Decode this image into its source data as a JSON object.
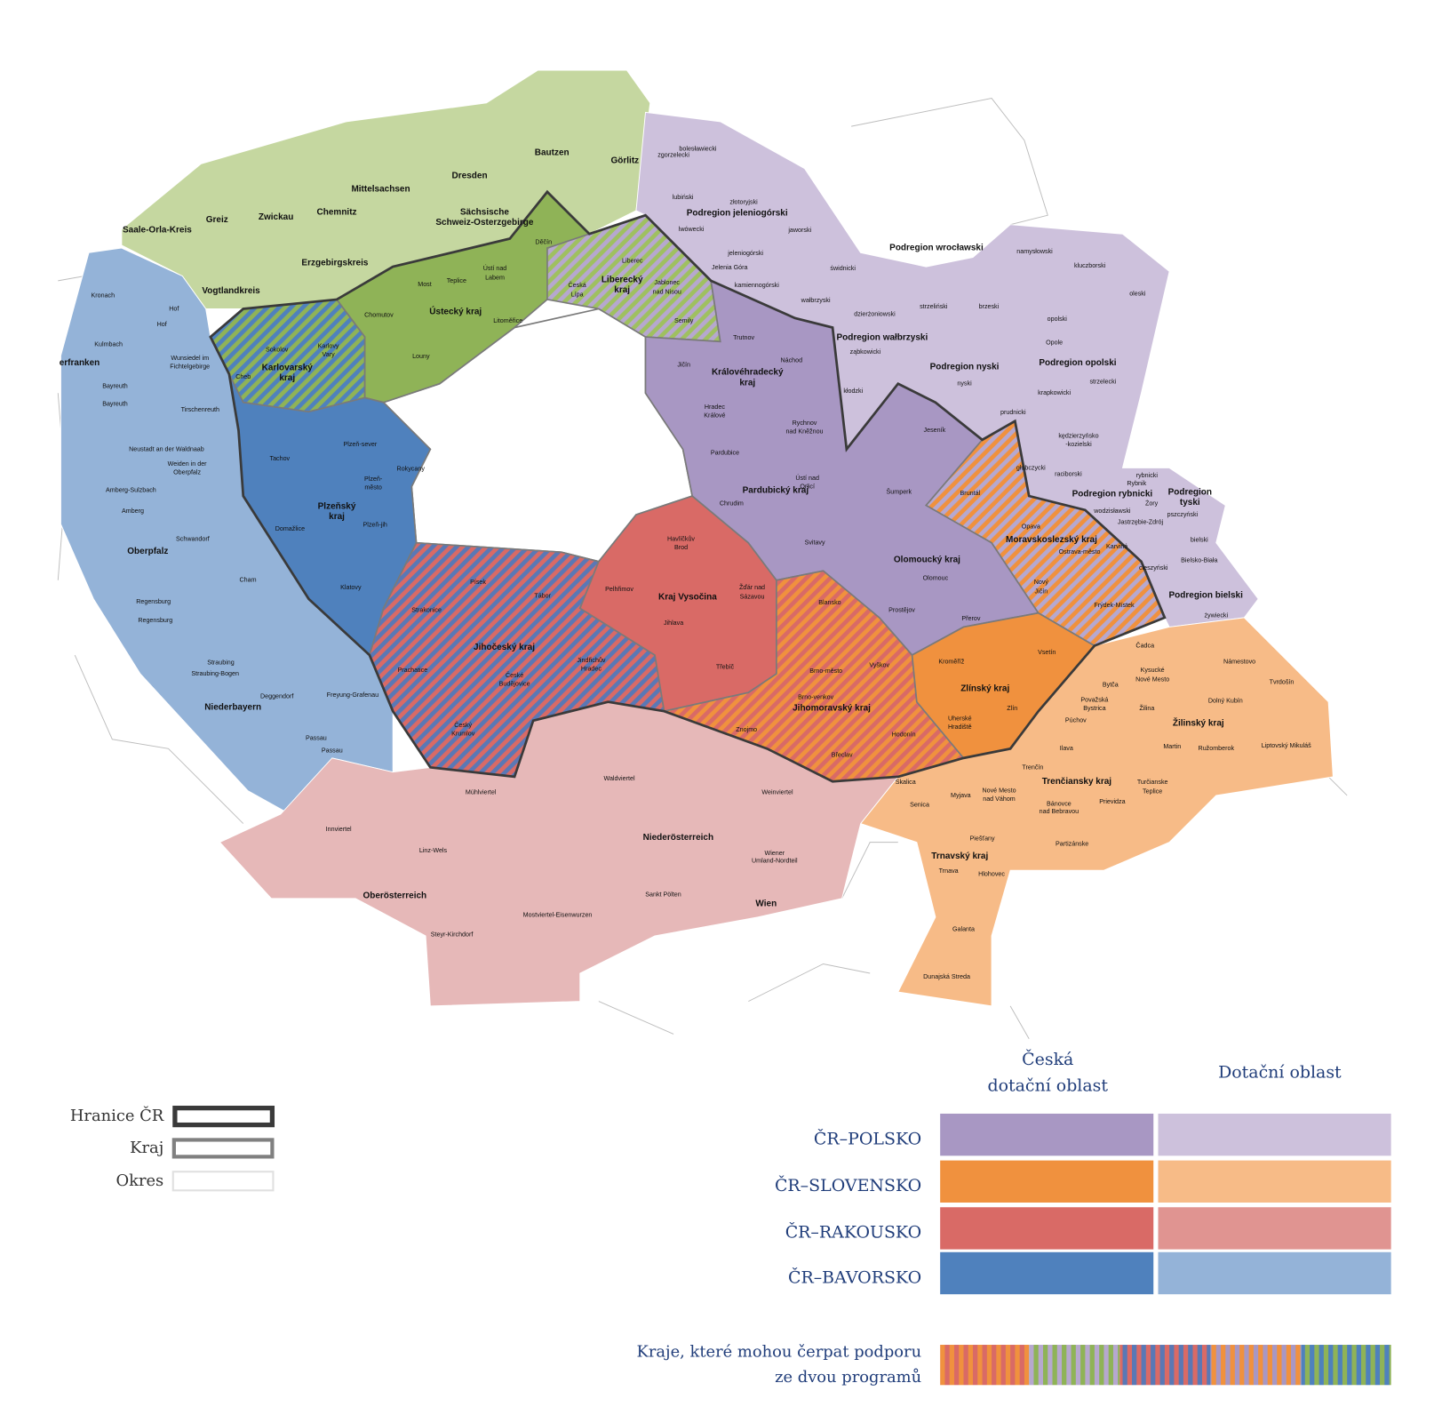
{
  "labels": {
    "saxony": [
      "Bautzen",
      "Görlitz",
      "Dresden",
      "Mittelsachsen",
      "Chemnitz",
      "Zwickau",
      "Greiz",
      "Saale-Orla-Kreis",
      "Sächsische",
      "Schweiz-Osterzgebirge",
      "Erzgebirgskreis",
      "Vogtlandkreis"
    ],
    "ustecky": [
      "Děčín",
      "Most",
      "Teplice",
      "Ústí nad",
      "Labem",
      "Ústecký kraj",
      "Chomutov",
      "Litoměřice",
      "Louny"
    ],
    "liberecky": [
      "Liberec",
      "Česká",
      "Lípa",
      "Liberecký",
      "kraj",
      "Jablonec",
      "nad Nisou",
      "Semily"
    ],
    "karlovarsky": [
      "Sokolov",
      "Karlovy",
      "Vary",
      "Karlovarský",
      "kraj",
      "Cheb"
    ],
    "bavaria": [
      "Kronach",
      "Hof",
      "Hof",
      "Kulmbach",
      "erfranken",
      "Wunsiedel im",
      "Fichtelgebirge",
      "Bayreuth",
      "Bayreuth",
      "Tirschenreuth",
      "Neustadt an der Waldnaab",
      "Weiden in der",
      "Oberpfalz",
      "Amberg-Sulzbach",
      "Amberg",
      "Schwandorf",
      "Oberpfalz",
      "Cham",
      "Regensburg",
      "Regensburg",
      "Straubing",
      "Straubing-Bogen",
      "Deggendorf",
      "Freyung-Grafenau",
      "Niederbayern",
      "Passau",
      "Passau"
    ],
    "plzensky": [
      "Tachov",
      "Plzeň-sever",
      "Rokycany",
      "Plzeň-",
      "město",
      "Plzeňský",
      "kraj",
      "Domažlice",
      "Plzeň-jih",
      "Klatovy"
    ],
    "jihocesky": [
      "Písek",
      "Tábor",
      "Strakonice",
      "Jihočeský kraj",
      "Jindřichův",
      "Hradec",
      "Prachatice",
      "České",
      "Budějovice",
      "Český",
      "Krumlov"
    ],
    "vysocina": [
      "Havlíčkův",
      "Brod",
      "Pelhřimov",
      "Kraj Vysočina",
      "Žďár nad",
      "Sázavou",
      "Jihlava",
      "Třebíč"
    ],
    "jihomoravsky": [
      "Blansko",
      "Vyškov",
      "Brno-město",
      "Brno-venkov",
      "Jihomoravský kraj",
      "Znojmo",
      "Hodonín",
      "Břeclav"
    ],
    "zlinsky": [
      "Vsetín",
      "Kroměříž",
      "Zlínský kraj",
      "Zlín",
      "Uherské",
      "Hradiště"
    ],
    "east": [
      "Trutnov",
      "Náchod",
      "Jičín",
      "Královéhradecký",
      "kraj",
      "Hradec",
      "Králové",
      "Rychnov",
      "nad Kněžnou",
      "Pardubice",
      "Ústí nad",
      "Orlicí",
      "Pardubický kraj",
      "Chrudim",
      "Svitavy",
      "Šumperk",
      "Jeseník",
      "Olomoucký kraj",
      "Olomouc",
      "Prostějov",
      "Přerov"
    ],
    "moravskoslezsky": [
      "Bruntál",
      "Opava",
      "Moravskoslezský kraj",
      "Ostrava-město",
      "Karviná",
      "Nový",
      "Jičín",
      "Frýdek-Místek"
    ],
    "poland": [
      "bolesławiecki",
      "zgorzelecki",
      "lubiński",
      "złotoryjski",
      "Podregion jeleniogórski",
      "lwówecki",
      "jaworski",
      "jeleniogórski",
      "Jelenia Góra",
      "świdnicki",
      "kamiennogórski",
      "wałbrzyski",
      "dzierżoniowski",
      "strzeliński",
      "brzeski",
      "Podregion wałbrzyski",
      "ząbkowicki",
      "Podregion nyski",
      "kłodzki",
      "nyski",
      "Podregion wrocławski",
      "namysłowski",
      "kluczborski",
      "oleski",
      "opolski",
      "Opole",
      "Podregion opolski",
      "strzelecki",
      "krapkowicki",
      "prudnicki",
      "kędzierzyńsko",
      "-kozielski",
      "głubczycki",
      "raciborski",
      "rybnicki",
      "Rybnik",
      "Podregion rybnicki",
      "Żory",
      "wodzisławski",
      "Jastrzębie-Zdrój",
      "Podregion",
      "tyski",
      "pszczyński",
      "bielski",
      "Bielsko-Biała",
      "cieszyński",
      "Podregion bielski",
      "żywiecki"
    ],
    "slovakia": [
      "Čadca",
      "Kysucké",
      "Nové Mesto",
      "Námestovo",
      "Tvrdošín",
      "Bytča",
      "Považská",
      "Bystrica",
      "Žilina",
      "Dolný Kubín",
      "Púchov",
      "Žilinský kraj",
      "Ilava",
      "Martin",
      "Ružomberok",
      "Liptovský Mikuláš",
      "Trenčín",
      "Trenčiansky kraj",
      "Turčianske",
      "Teplice",
      "Skalica",
      "Myjava",
      "Nové Mesto",
      "nad Váhom",
      "Bánovce",
      "nad Bebravou",
      "Prievidza",
      "Senica",
      "Piešťany",
      "Partizánske",
      "Trnavský kraj",
      "Trnava",
      "Hlohovec",
      "Galanta",
      "Dunajská Streda"
    ],
    "austria": [
      "Mühlviertel",
      "Waldviertel",
      "Weinviertel",
      "Innviertel",
      "Niederösterreich",
      "Linz-Wels",
      "Wiener",
      "Umland-Nordteil",
      "Oberösterreich",
      "Sankt Pölten",
      "Wien",
      "Mostviertel-Eisenwurzen",
      "Steyr-Kirchdorf"
    ]
  },
  "legend": {
    "borders": [
      "Hranice ČR",
      "Kraj",
      "Okres"
    ],
    "columns": [
      [
        "Česká",
        "dotační oblast"
      ],
      [
        "Dotační oblast"
      ]
    ],
    "rows": [
      {
        "name": "ČR–POLSKO",
        "color": "#a897c3",
        "light": "#cdc1dc"
      },
      {
        "name": "ČR–SLOVENSKO",
        "color": "#f0913e",
        "light": "#f7bb87"
      },
      {
        "name": "ČR–RAKOUSKO",
        "color": "#d96a66",
        "light": "#e09491"
      },
      {
        "name": "ČR–BAVORSKO",
        "color": "#4f81bd",
        "light": "#94b3d8"
      }
    ],
    "dual": [
      "Kraje, které mohou čerpat podporu",
      "ze dvou programů"
    ]
  }
}
